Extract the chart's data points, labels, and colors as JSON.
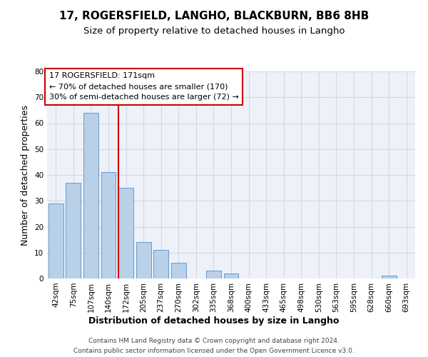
{
  "title": "17, ROGERSFIELD, LANGHO, BLACKBURN, BB6 8HB",
  "subtitle": "Size of property relative to detached houses in Langho",
  "xlabel": "Distribution of detached houses by size in Langho",
  "ylabel": "Number of detached properties",
  "footnote1": "Contains HM Land Registry data © Crown copyright and database right 2024.",
  "footnote2": "Contains public sector information licensed under the Open Government Licence v3.0.",
  "bar_labels": [
    "42sqm",
    "75sqm",
    "107sqm",
    "140sqm",
    "172sqm",
    "205sqm",
    "237sqm",
    "270sqm",
    "302sqm",
    "335sqm",
    "368sqm",
    "400sqm",
    "433sqm",
    "465sqm",
    "498sqm",
    "530sqm",
    "563sqm",
    "595sqm",
    "628sqm",
    "660sqm",
    "693sqm"
  ],
  "bar_values": [
    29,
    37,
    64,
    41,
    35,
    14,
    11,
    6,
    0,
    3,
    2,
    0,
    0,
    0,
    0,
    0,
    0,
    0,
    0,
    1,
    0
  ],
  "bar_color": "#b8d0e8",
  "bar_edge_color": "#6699cc",
  "annotation_line_color": "#cc0000",
  "annotation_box_text": "17 ROGERSFIELD: 171sqm\n← 70% of detached houses are smaller (170)\n30% of semi-detached houses are larger (72) →",
  "annotation_box_color": "#cc0000",
  "ylim": [
    0,
    80
  ],
  "yticks": [
    0,
    10,
    20,
    30,
    40,
    50,
    60,
    70,
    80
  ],
  "grid_color": "#d0d8e8",
  "background_color": "#eef2f8",
  "title_fontsize": 11,
  "subtitle_fontsize": 9.5,
  "axis_label_fontsize": 9,
  "tick_fontsize": 7.5,
  "annotation_fontsize": 8,
  "footnote_fontsize": 6.5
}
